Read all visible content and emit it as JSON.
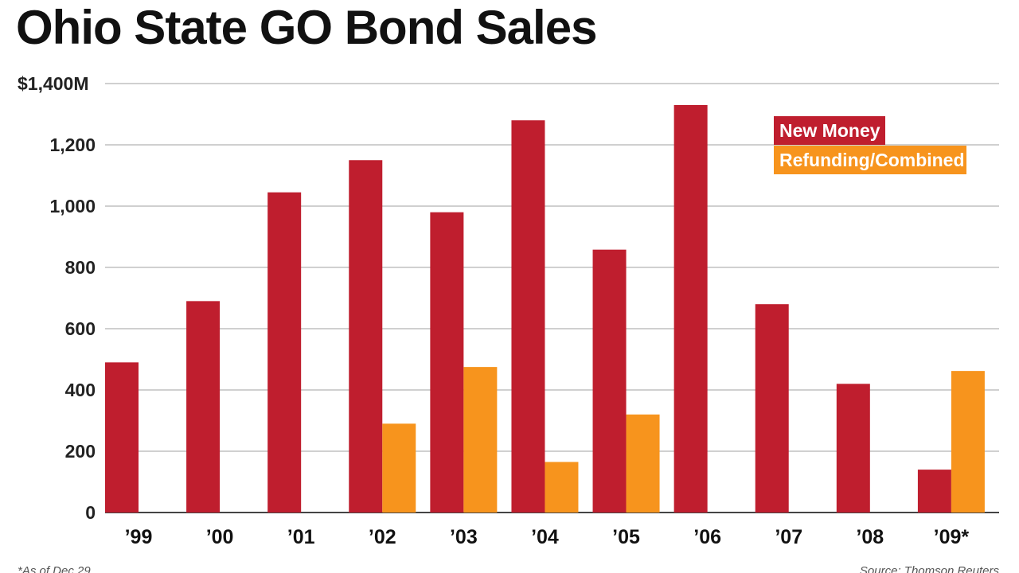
{
  "chart_data": {
    "type": "bar",
    "title": "Ohio State GO Bond Sales",
    "xlabel": "",
    "ylabel": "",
    "ylim": [
      0,
      1400
    ],
    "yticks": [
      0,
      200,
      400,
      600,
      800,
      1000,
      1200,
      1400
    ],
    "ytick_labels": [
      "0",
      "200",
      "400",
      "600",
      "800",
      "1,000",
      "1,200",
      "$1,400M"
    ],
    "categories": [
      "’99",
      "’00",
      "’01",
      "’02",
      "’03",
      "’04",
      "’05",
      "’06",
      "’07",
      "’08",
      "’09*"
    ],
    "series": [
      {
        "name": "New Money",
        "color": "#bf1e2e",
        "values": [
          490,
          690,
          1045,
          1150,
          980,
          1280,
          858,
          1330,
          680,
          420,
          140
        ]
      },
      {
        "name": "Refunding/Combined",
        "color": "#f7941d",
        "values": [
          0,
          0,
          0,
          290,
          475,
          165,
          320,
          0,
          0,
          0,
          462
        ]
      }
    ],
    "legend_position": "top-right",
    "grid": true,
    "footnote": "*As of Dec 29",
    "source": "Source: Thomson Reuters"
  }
}
